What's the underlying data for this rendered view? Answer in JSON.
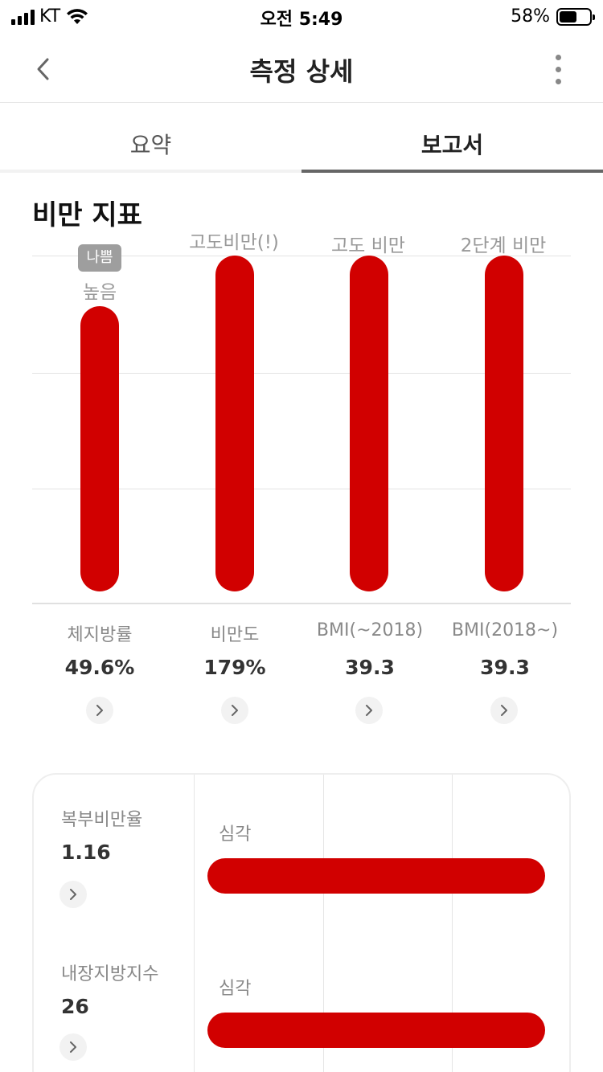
{
  "status_bar": {
    "carrier": "KT",
    "time": "오전 5:49",
    "battery": "58%",
    "battery_level": 0.58
  },
  "header": {
    "title": "측정 상세",
    "back_icon": "chevron-left-icon",
    "more_icon": "more-vertical-icon"
  },
  "tabs": [
    {
      "label": "요약",
      "active": false
    },
    {
      "label": "보고서",
      "active": true
    }
  ],
  "obesity": {
    "title": "비만 지표",
    "columns": [
      {
        "label": "체지방률",
        "value": "49.6%",
        "status": "높음",
        "badge": "나쁨"
      },
      {
        "label": "비만도",
        "value": "179%",
        "status": "고도비만(!)"
      },
      {
        "label": "BMI(~2018)",
        "value": "39.3",
        "status": "고도 비만"
      },
      {
        "label": "BMI(2018~)",
        "value": "39.3",
        "status": "2단계 비만"
      }
    ]
  },
  "chart_data": {
    "type": "bar",
    "categories": [
      "체지방률",
      "비만도",
      "BMI(~2018)",
      "BMI(2018~)"
    ],
    "values": [
      0.85,
      1.0,
      1.0,
      1.0
    ],
    "ylim": [
      0,
      1
    ],
    "grid": true,
    "bar_color": "#d10000"
  },
  "detail_card": {
    "metrics": [
      {
        "label": "복부비만율",
        "value": "1.16",
        "status": "심각",
        "level": 1.0
      },
      {
        "label": "내장지방지수",
        "value": "26",
        "status": "심각",
        "level": 1.0
      }
    ]
  },
  "colors": {
    "accent_red": "#d10000",
    "badge_gray": "#9e9e9e"
  }
}
